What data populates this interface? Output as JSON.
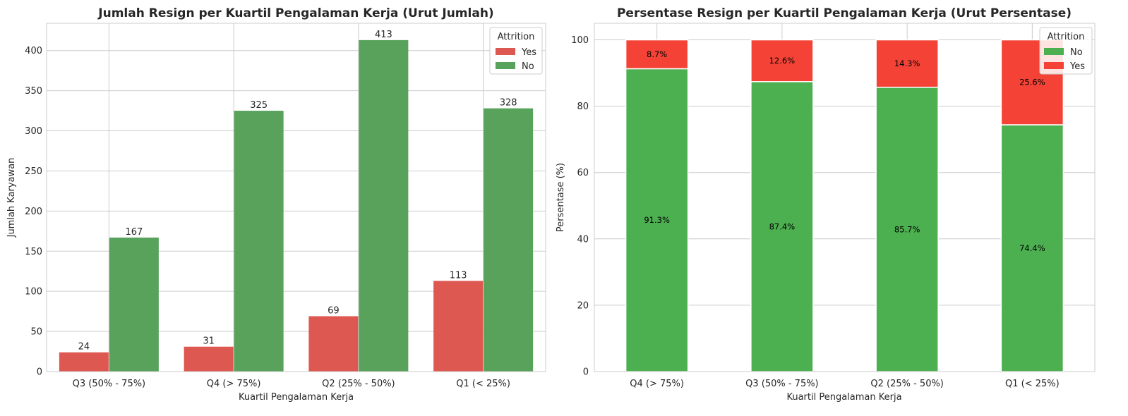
{
  "chart_data": [
    {
      "type": "bar",
      "title": "Jumlah Resign per Kuartil Pengalaman Kerja (Urut Jumlah)",
      "xlabel": "Kuartil Pengalaman Kerja",
      "ylabel": "Jumlah Karyawan",
      "categories": [
        "Q3 (50% - 75%)",
        "Q4 (> 75%)",
        "Q2 (25% - 50%)",
        "Q1 (< 25%)"
      ],
      "series": [
        {
          "name": "Yes",
          "values": [
            24,
            31,
            69,
            113
          ],
          "color": "#dd5850"
        },
        {
          "name": "No",
          "values": [
            167,
            325,
            413,
            328
          ],
          "color": "#58a25b"
        }
      ],
      "ylim": [
        0,
        434
      ],
      "yticks": [
        0,
        50,
        100,
        150,
        200,
        250,
        300,
        350,
        400
      ],
      "grid": true,
      "legend": {
        "title": "Attrition",
        "placement": "top-right"
      }
    },
    {
      "type": "bar",
      "stacked": true,
      "title": "Persentase Resign per Kuartil Pengalaman Kerja (Urut Persentase)",
      "xlabel": "Kuartil Pengalaman Kerja",
      "ylabel": "Persentase (%)",
      "categories": [
        "Q4 (> 75%)",
        "Q3 (50% - 75%)",
        "Q2 (25% - 50%)",
        "Q1 (< 25%)"
      ],
      "series": [
        {
          "name": "No",
          "values": [
            91.3,
            87.4,
            85.7,
            74.4
          ],
          "labels": [
            "91.3%",
            "87.4%",
            "85.7%",
            "74.4%"
          ],
          "color": "#4caf50"
        },
        {
          "name": "Yes",
          "values": [
            8.7,
            12.6,
            14.3,
            25.6
          ],
          "labels": [
            "8.7%",
            "12.6%",
            "14.3%",
            "25.6%"
          ],
          "color": "#f44336"
        }
      ],
      "ylim": [
        0,
        105
      ],
      "yticks": [
        0,
        20,
        40,
        60,
        80,
        100
      ],
      "grid": true,
      "legend": {
        "title": "Attrition",
        "placement": "top-right"
      }
    }
  ]
}
